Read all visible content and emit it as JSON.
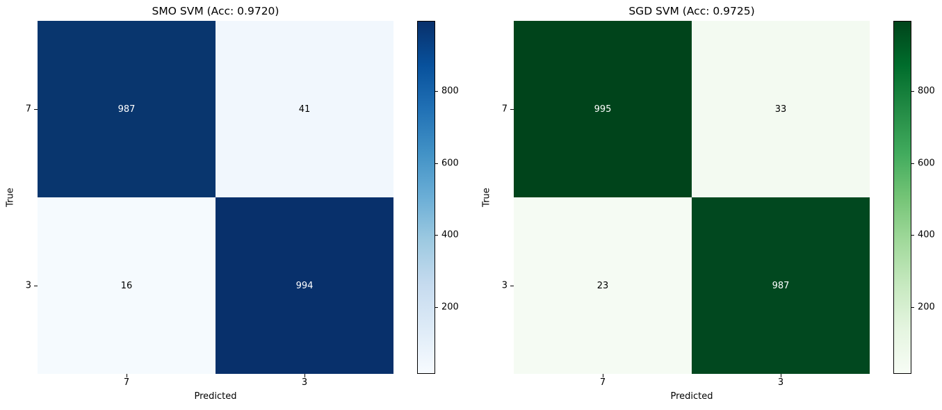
{
  "chart_data": [
    {
      "type": "heatmap",
      "title": "SMO SVM (Acc: 0.9720)",
      "xlabel": "Predicted",
      "ylabel": "True",
      "x_categories": [
        "7",
        "3"
      ],
      "y_categories": [
        "7",
        "3"
      ],
      "values": [
        [
          987,
          41
        ],
        [
          16,
          994
        ]
      ],
      "vmin": 16,
      "vmax": 994,
      "colormap": "Blues",
      "colorbar_ticks": [
        800,
        600,
        400,
        200
      ],
      "legend_position": "right-colorbar",
      "grid": false,
      "colors": {
        "cells": [
          [
            "#09366e",
            "#f1f7fd"
          ],
          [
            "#f5fafe",
            "#08306b"
          ]
        ],
        "cell_text": [
          [
            "#ffffff",
            "#000000"
          ],
          [
            "#000000",
            "#ffffff"
          ]
        ]
      }
    },
    {
      "type": "heatmap",
      "title": "SGD SVM (Acc: 0.9725)",
      "xlabel": "Predicted",
      "ylabel": "True",
      "x_categories": [
        "7",
        "3"
      ],
      "y_categories": [
        "7",
        "3"
      ],
      "values": [
        [
          995,
          33
        ],
        [
          23,
          987
        ]
      ],
      "vmin": 23,
      "vmax": 995,
      "colormap": "Greens",
      "colorbar_ticks": [
        800,
        600,
        400,
        200
      ],
      "legend_position": "right-colorbar",
      "grid": false,
      "colors": {
        "cells": [
          [
            "#00441b",
            "#f3faf1"
          ],
          [
            "#f5fbf3",
            "#01481f"
          ]
        ],
        "cell_text": [
          [
            "#ffffff",
            "#000000"
          ],
          [
            "#000000",
            "#ffffff"
          ]
        ]
      }
    }
  ]
}
